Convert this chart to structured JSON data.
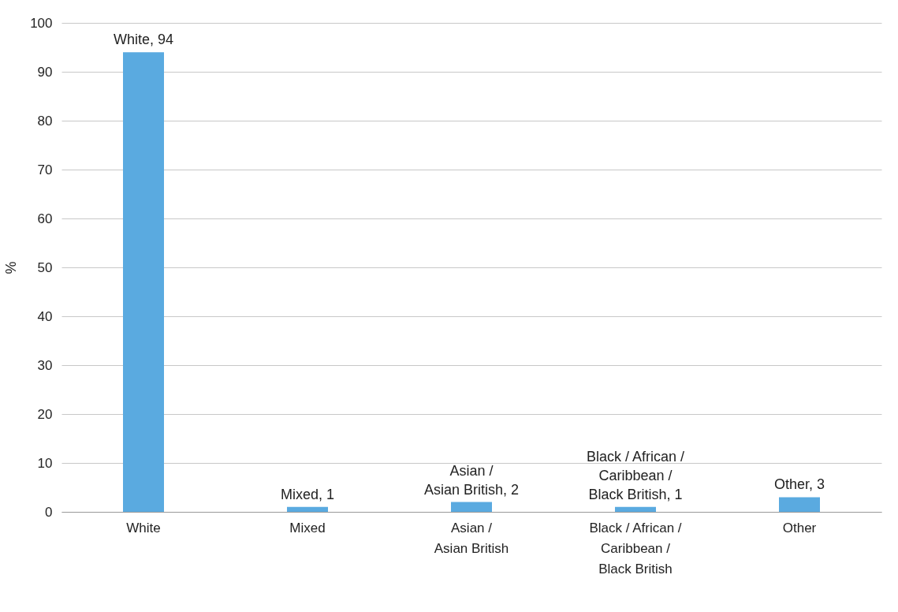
{
  "chart_data": {
    "type": "bar",
    "ylabel": "%",
    "categories": [
      "White",
      "Mixed",
      "Asian / Asian British",
      "Black / African / Caribbean / Black British",
      "Other"
    ],
    "values": [
      94,
      1,
      2,
      1,
      3
    ],
    "value_labels": [
      "White, 94",
      "Mixed, 1",
      "Asian / Asian British, 2",
      "Black / African / Caribbean / Black British, 1",
      "Other, 3"
    ],
    "color": "#5aaae0",
    "ylim": [
      0,
      100
    ],
    "yticks": [
      0,
      10,
      20,
      30,
      40,
      50,
      60,
      70,
      80,
      90,
      100
    ],
    "grid": "y"
  }
}
